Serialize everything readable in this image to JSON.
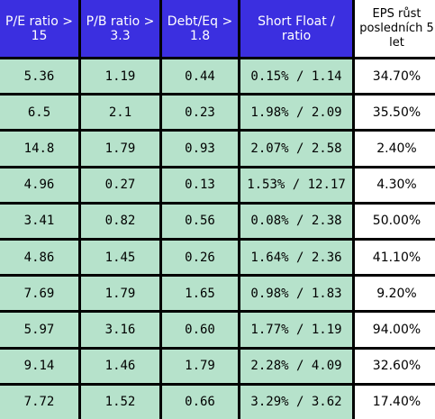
{
  "headers": [
    "P/E ratio > 15",
    "P/B ratio > 3.3",
    "Debt/Eq > 1.8",
    "Short Float / ratio",
    "EPS růst posledních 5 let"
  ],
  "rows": [
    [
      "5.36",
      "1.19",
      "0.44",
      "0.15% / 1.14",
      "34.70%"
    ],
    [
      "6.5",
      "2.1",
      "0.23",
      "1.98% / 2.09",
      "35.50%"
    ],
    [
      "14.8",
      "1.79",
      "0.93",
      "2.07% / 2.58",
      "2.40%"
    ],
    [
      "4.96",
      "0.27",
      "0.13",
      "1.53% / 12.17",
      "4.30%"
    ],
    [
      "3.41",
      "0.82",
      "0.56",
      "0.08% / 2.38",
      "50.00%"
    ],
    [
      "4.86",
      "1.45",
      "0.26",
      "1.64% / 2.36",
      "41.10%"
    ],
    [
      "7.69",
      "1.79",
      "1.65",
      "0.98% / 1.83",
      "9.20%"
    ],
    [
      "5.97",
      "3.16",
      "0.60",
      "1.77% / 1.19",
      "94.00%"
    ],
    [
      "9.14",
      "1.46",
      "1.79",
      "2.28% / 4.09",
      "32.60%"
    ],
    [
      "7.72",
      "1.52",
      "0.66",
      "3.29% / 3.62",
      "17.40%"
    ]
  ]
}
